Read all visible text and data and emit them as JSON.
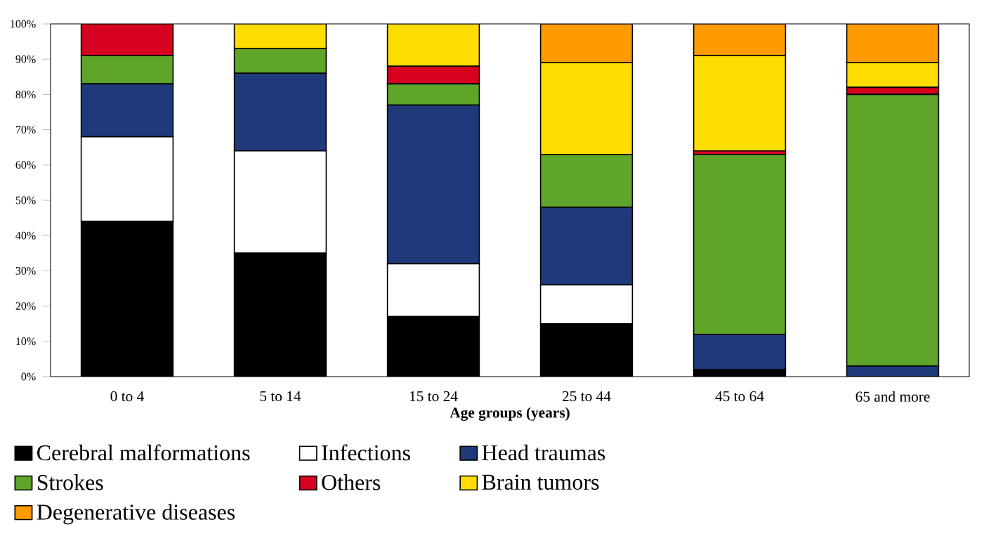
{
  "chart_data": {
    "type": "bar",
    "stacked": true,
    "xlabel": "Age groups (years)",
    "categories": [
      "0 to 4",
      "5 to 14",
      "15 to 24",
      "25 to 44",
      "45 to 64",
      "65 and more"
    ],
    "series": [
      {
        "name": "Cerebral malformations",
        "color": "#000000",
        "values": [
          44,
          35,
          17,
          15,
          2,
          0
        ]
      },
      {
        "name": "Infections",
        "color": "#ffffff",
        "values": [
          24,
          29,
          15,
          11,
          0,
          0
        ]
      },
      {
        "name": "Head traumas",
        "color": "#1f3a7a",
        "values": [
          15,
          22,
          45,
          22,
          10,
          3
        ]
      },
      {
        "name": "Strokes",
        "color": "#5fa52a",
        "values": [
          8,
          7,
          6,
          15,
          51,
          77
        ]
      },
      {
        "name": "Others",
        "color": "#d7001f",
        "values": [
          9,
          0,
          5,
          0,
          1,
          2
        ]
      },
      {
        "name": "Brain tumors",
        "color": "#ffdd00",
        "values": [
          0,
          7,
          12,
          26,
          27,
          7
        ]
      },
      {
        "name": "Degenerative diseases",
        "color": "#ff9a00",
        "values": [
          0,
          0,
          0,
          11,
          9,
          11
        ]
      }
    ],
    "ylim": [
      0,
      100
    ],
    "yticks": [
      {
        "value": 0,
        "label": "0%"
      },
      {
        "value": 10,
        "label": "10%"
      },
      {
        "value": 20,
        "label": "20%"
      },
      {
        "value": 30,
        "label": "30%"
      },
      {
        "value": 40,
        "label": "40%"
      },
      {
        "value": 50,
        "label": "50%"
      },
      {
        "value": 60,
        "label": "60%"
      },
      {
        "value": 70,
        "label": "70%"
      },
      {
        "value": 80,
        "label": "80%"
      },
      {
        "value": 90,
        "label": "90%"
      },
      {
        "value": 100,
        "label": "100%"
      }
    ],
    "grid": false,
    "legend": "bottom"
  }
}
